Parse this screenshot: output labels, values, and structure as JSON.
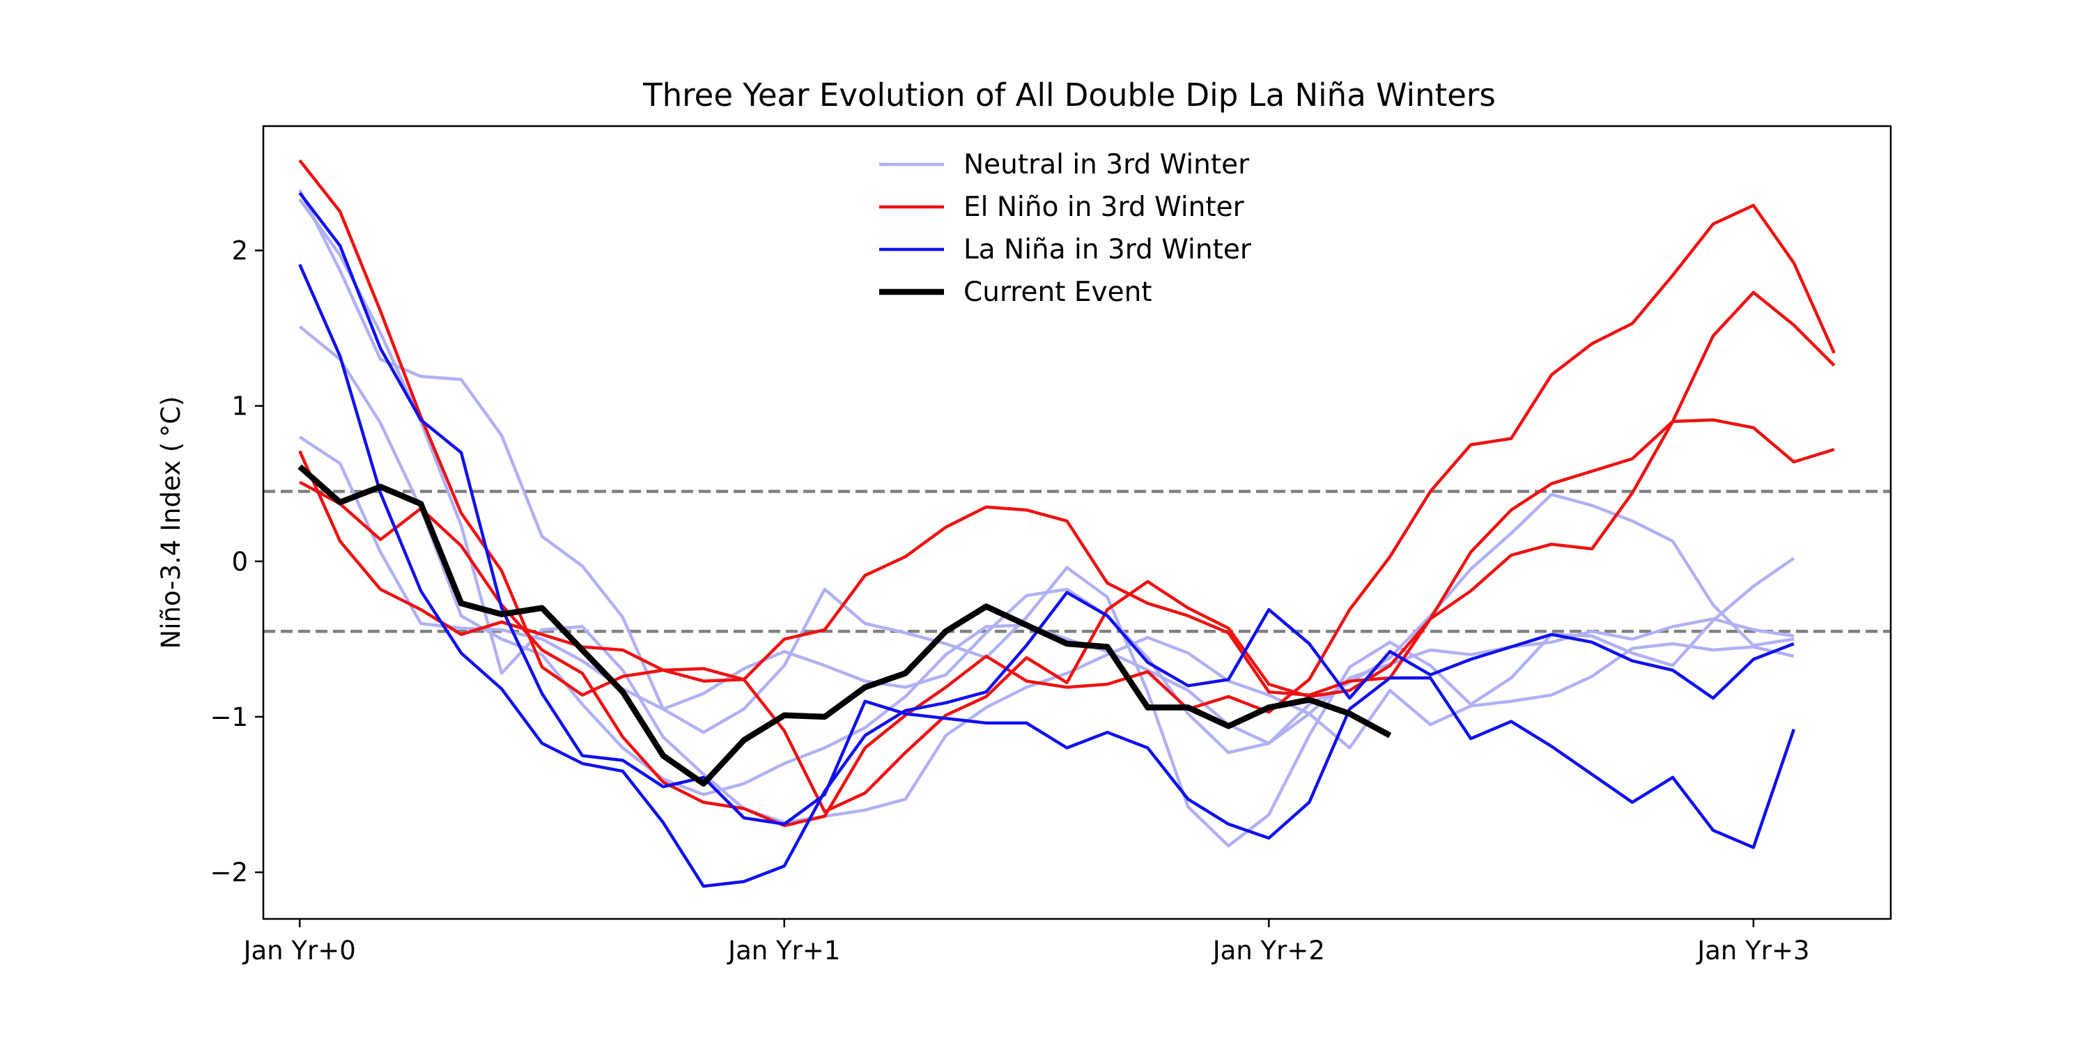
{
  "chart_data": {
    "type": "line",
    "title": "Three Year Evolution of All Double Dip La Niña Winters",
    "xlabel": "",
    "ylabel": "Niño-3.4 Index ( °C)",
    "ylim": [
      -2.3,
      2.8
    ],
    "xlim": [
      -0.9,
      39.4
    ],
    "x_ticks": [
      {
        "x": 0,
        "label": "Jan Yr+0"
      },
      {
        "x": 12,
        "label": "Jan Yr+1"
      },
      {
        "x": 24,
        "label": "Jan Yr+2"
      },
      {
        "x": 36,
        "label": "Jan Yr+3"
      }
    ],
    "y_ticks": [
      {
        "y": -2,
        "label": "−2"
      },
      {
        "y": -1,
        "label": "−1"
      },
      {
        "y": 0,
        "label": "0"
      },
      {
        "y": 1,
        "label": "1"
      },
      {
        "y": 2,
        "label": "2"
      }
    ],
    "reference_lines": [
      0.45,
      -0.45
    ],
    "grid": false,
    "legend_position": "top-center",
    "legend": [
      {
        "label": "Neutral in 3rd Winter",
        "color": "#b0b0f5",
        "width": 4.5
      },
      {
        "label": "El Niño in 3rd Winter",
        "color": "#ee1111",
        "width": 4.5
      },
      {
        "label": "La Niña in 3rd Winter",
        "color": "#1010ee",
        "width": 4.5
      },
      {
        "label": "Current Event",
        "color": "#000000",
        "width": 8.5
      }
    ],
    "series": [
      {
        "category": "Neutral in 3rd Winter",
        "color": "#b0b0f5",
        "values": [
          2.33,
          1.97,
          1.47,
          0.9,
          0.23,
          -0.72,
          -0.44,
          -0.42,
          -0.7,
          -1.13,
          -1.37,
          -1.59,
          -1.68,
          -1.64,
          -1.6,
          -1.53,
          -1.12,
          -0.94,
          -0.81,
          -0.72,
          -0.6,
          -0.49,
          -0.59,
          -0.77,
          -0.86,
          -0.98,
          -1.2,
          -0.83,
          -1.05,
          -0.93,
          -0.9,
          -0.86,
          -0.74,
          -0.56,
          -0.53,
          -0.57,
          -0.55,
          -0.61
        ]
      },
      {
        "category": "Neutral in 3rd Winter",
        "color": "#b0b0f5",
        "values": [
          1.51,
          1.3,
          0.89,
          0.34,
          -0.35,
          -0.5,
          -0.6,
          -0.92,
          -1.2,
          -1.4,
          -1.5,
          -1.43,
          -1.3,
          -1.2,
          -1.07,
          -0.87,
          -0.6,
          -0.42,
          -0.41,
          -0.5,
          -0.58,
          -0.7,
          -0.83,
          -1.05,
          -1.17,
          -0.98,
          -0.75,
          -0.66,
          -0.57,
          -0.6,
          -0.55,
          -0.52,
          -0.45,
          -0.5,
          -0.42,
          -0.37,
          -0.44,
          -0.48
        ]
      },
      {
        "category": "Neutral in 3rd Winter",
        "color": "#b0b0f5",
        "values": [
          0.8,
          0.63,
          0.06,
          -0.4,
          -0.43,
          -0.44,
          -0.5,
          -0.64,
          -0.82,
          -0.95,
          -0.85,
          -0.69,
          -0.58,
          -0.67,
          -0.77,
          -0.81,
          -0.73,
          -0.46,
          -0.22,
          -0.18,
          -0.35,
          -0.62,
          -0.98,
          -1.23,
          -1.17,
          -0.92,
          -0.78,
          -0.62,
          -0.35,
          -0.05,
          0.18,
          0.43,
          0.36,
          0.26,
          0.13,
          -0.28,
          -0.54,
          -0.5
        ]
      },
      {
        "category": "Neutral in 3rd Winter",
        "color": "#b0b0f5",
        "values": [
          2.39,
          1.87,
          1.3,
          1.19,
          1.17,
          0.81,
          0.16,
          -0.03,
          -0.36,
          -0.95,
          -1.1,
          -0.95,
          -0.67,
          -0.18,
          -0.4,
          -0.46,
          -0.53,
          -0.62,
          -0.36,
          -0.04,
          -0.23,
          -0.84,
          -1.58,
          -1.83,
          -1.63,
          -1.12,
          -0.68,
          -0.52,
          -0.67,
          -0.92,
          -0.75,
          -0.47,
          -0.48,
          -0.59,
          -0.67,
          -0.38,
          -0.16,
          0.02
        ]
      },
      {
        "category": "El Niño in 3rd Winter",
        "color": "#ee1111",
        "values": [
          2.58,
          2.25,
          1.61,
          0.93,
          0.31,
          -0.06,
          -0.68,
          -0.86,
          -0.74,
          -0.7,
          -0.69,
          -0.76,
          -1.09,
          -1.61,
          -1.49,
          -1.23,
          -0.99,
          -0.87,
          -0.62,
          -0.78,
          -0.31,
          -0.13,
          -0.3,
          -0.43,
          -0.79,
          -0.87,
          -0.83,
          -0.67,
          -0.37,
          0.06,
          0.33,
          0.5,
          0.58,
          0.66,
          0.9,
          0.91,
          0.86,
          0.64,
          0.72
        ]
      },
      {
        "category": "El Niño in 3rd Winter",
        "color": "#ee1111",
        "values": [
          0.71,
          0.13,
          -0.18,
          -0.31,
          -0.47,
          -0.39,
          -0.47,
          -0.55,
          -0.57,
          -0.7,
          -0.77,
          -0.76,
          -0.5,
          -0.44,
          -0.09,
          0.03,
          0.22,
          0.35,
          0.33,
          0.26,
          -0.14,
          -0.27,
          -0.35,
          -0.46,
          -0.84,
          -0.86,
          -0.77,
          -0.75,
          -0.37,
          -0.19,
          0.04,
          0.11,
          0.08,
          0.44,
          0.9,
          1.45,
          1.73,
          1.52,
          1.26
        ]
      },
      {
        "category": "El Niño in 3rd Winter",
        "color": "#ee1111",
        "values": [
          0.51,
          0.37,
          0.14,
          0.34,
          0.1,
          -0.28,
          -0.57,
          -0.72,
          -1.13,
          -1.42,
          -1.55,
          -1.59,
          -1.7,
          -1.64,
          -1.2,
          -0.99,
          -0.81,
          -0.61,
          -0.77,
          -0.81,
          -0.79,
          -0.71,
          -0.95,
          -0.87,
          -0.97,
          -0.76,
          -0.31,
          0.03,
          0.45,
          0.75,
          0.79,
          1.2,
          1.4,
          1.53,
          1.84,
          2.17,
          2.29,
          1.92,
          1.34
        ]
      },
      {
        "category": "La Niña in 3rd Winter",
        "color": "#1010ee",
        "values": [
          2.37,
          2.03,
          1.37,
          0.91,
          0.7,
          -0.3,
          -0.85,
          -1.25,
          -1.28,
          -1.45,
          -1.39,
          -1.65,
          -1.69,
          -1.5,
          -0.9,
          -0.98,
          -1.01,
          -1.04,
          -1.04,
          -1.2,
          -1.1,
          -1.2,
          -1.53,
          -1.69,
          -1.78,
          -1.55,
          -0.95,
          -0.75,
          -0.75,
          -1.14,
          -1.03,
          -1.19,
          -1.37,
          -1.55,
          -1.39,
          -1.73,
          -1.84,
          -1.08
        ]
      },
      {
        "category": "La Niña in 3rd Winter",
        "color": "#1010ee",
        "values": [
          1.91,
          1.32,
          0.44,
          -0.19,
          -0.59,
          -0.82,
          -1.17,
          -1.3,
          -1.35,
          -1.68,
          -2.09,
          -2.06,
          -1.96,
          -1.48,
          -1.12,
          -0.96,
          -0.91,
          -0.84,
          -0.54,
          -0.2,
          -0.35,
          -0.65,
          -0.8,
          -0.76,
          -0.31,
          -0.53,
          -0.88,
          -0.58,
          -0.73,
          -0.63,
          -0.55,
          -0.47,
          -0.52,
          -0.64,
          -0.7,
          -0.88,
          -0.63,
          -0.53
        ]
      },
      {
        "category": "Current Event",
        "color": "#000000",
        "values": [
          0.61,
          0.38,
          0.48,
          0.37,
          -0.27,
          -0.34,
          -0.3,
          -0.57,
          -0.84,
          -1.25,
          -1.43,
          -1.15,
          -0.99,
          -1.0,
          -0.81,
          -0.72,
          -0.45,
          -0.29,
          -0.41,
          -0.53,
          -0.55,
          -0.94,
          -0.94,
          -1.06,
          -0.94,
          -0.89,
          -0.98,
          -1.12
        ]
      }
    ]
  }
}
